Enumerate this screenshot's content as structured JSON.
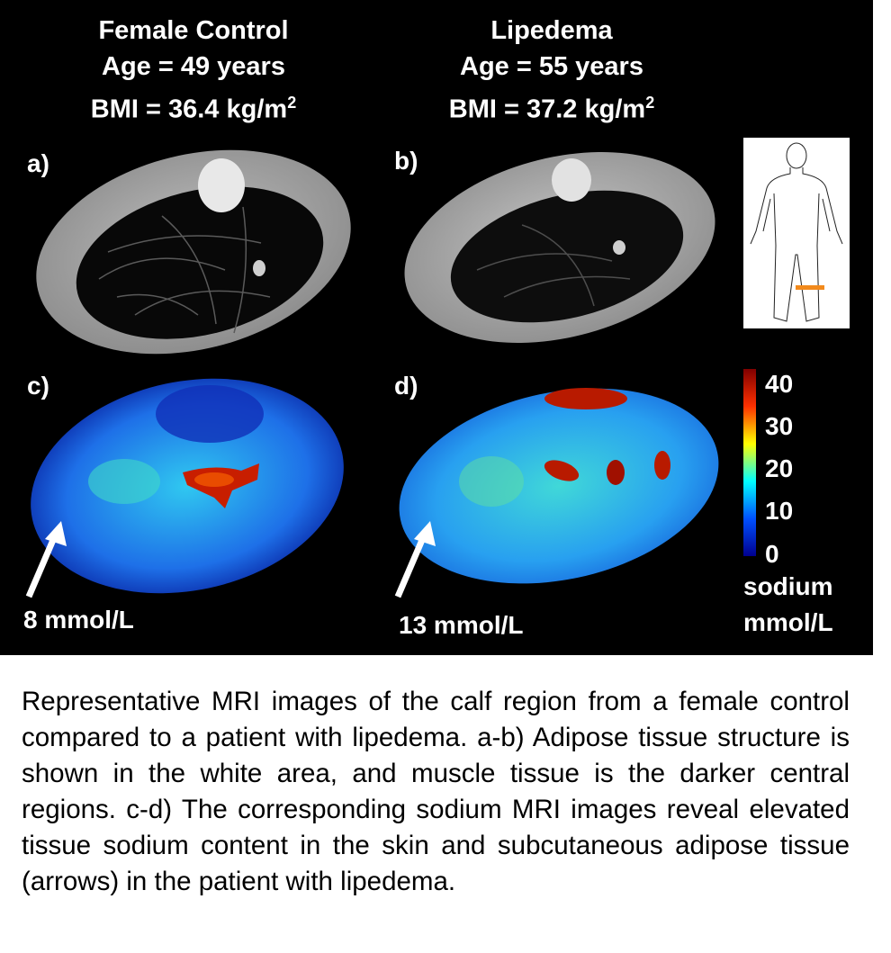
{
  "figure": {
    "columns": [
      {
        "title": "Female Control",
        "age": "Age = 49 years",
        "bmi_prefix": "BMI = 36.4 kg/m",
        "bmi_sup": "2"
      },
      {
        "title": "Lipedema",
        "age": "Age = 55 years",
        "bmi_prefix": "BMI = 37.2 kg/m",
        "bmi_sup": "2"
      }
    ],
    "panel_labels": {
      "a": "a)",
      "b": "b)",
      "c": "c)",
      "d": "d)"
    },
    "arrow_labels": {
      "control": "8 mmol/L",
      "lipedema": "13 mmol/L"
    },
    "colorbar": {
      "ticks": [
        "40",
        "30",
        "20",
        "10",
        "0"
      ],
      "unit_line1": "sodium",
      "unit_line2": "mmol/L",
      "range": [
        0,
        40
      ],
      "colormap": "jet",
      "colors": [
        "#00008f",
        "#0050ff",
        "#00ffff",
        "#ffff00",
        "#ff3000",
        "#800000"
      ]
    },
    "body_marker_color": "#f28a1c",
    "caption": "Representative MRI images of the calf region from a female control compared to a patient with lipedema. a-b) Adipose tissue structure is shown in the white area, and muscle tissue is the darker central regions. c-d) The corresponding sodium MRI images reveal elevated tissue sodium content in the skin and subcutaneous adipose tissue (arrows) in the patient with lipedema."
  }
}
